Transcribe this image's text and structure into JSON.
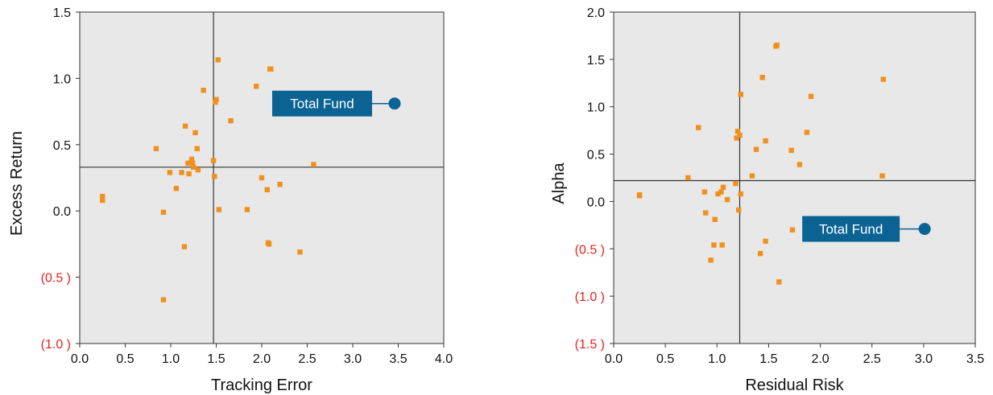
{
  "chart_data": [
    {
      "type": "scatter",
      "xlabel": "Tracking Error",
      "ylabel": "Excess Return",
      "xlim": [
        0,
        4
      ],
      "ylim": [
        -1,
        1.5
      ],
      "x_ticks": [
        0,
        0.5,
        1,
        1.5,
        2,
        2.5,
        3,
        3.5,
        4
      ],
      "x_tick_labels": [
        "0.0",
        "0.5",
        "1.0",
        "1.5",
        "2.0",
        "2.5",
        "3.0",
        "3.5",
        "4.0"
      ],
      "y_ticks": [
        1.5,
        1,
        0.5,
        0,
        -0.5,
        -1
      ],
      "y_tick_labels": [
        "1.5",
        "1.0",
        "0.5",
        "0.0",
        "(0.5 )",
        "(1.0 )"
      ],
      "crosshair": {
        "x": 1.47,
        "y": 0.33
      },
      "grid": false,
      "series": [
        {
          "color": "#f0901e",
          "marker": "square",
          "x": [
            0.25,
            0.25,
            0.84,
            0.92,
            0.92,
            0.99,
            1.06,
            1.12,
            1.15,
            1.16,
            1.19,
            1.2,
            1.23,
            1.24,
            1.25,
            1.27,
            1.29,
            1.3,
            1.36,
            1.47,
            1.48,
            1.49,
            1.5,
            1.52,
            1.53,
            1.66,
            1.84,
            1.94,
            2.0,
            2.06,
            2.07,
            2.08,
            2.09,
            2.1,
            2.2,
            2.42,
            2.57
          ],
          "y": [
            0.08,
            0.11,
            0.47,
            -0.01,
            -0.67,
            0.29,
            0.17,
            0.29,
            -0.27,
            0.64,
            0.36,
            0.28,
            0.39,
            0.36,
            0.33,
            0.59,
            0.47,
            0.31,
            0.91,
            0.38,
            0.26,
            0.82,
            0.84,
            1.14,
            0.01,
            0.68,
            0.01,
            0.94,
            0.25,
            0.16,
            -0.24,
            -0.25,
            1.07,
            1.07,
            0.2,
            -0.31,
            0.35
          ]
        },
        {
          "name": "Total Fund",
          "color": "#0b6394",
          "marker": "circle",
          "x": [
            3.46
          ],
          "y": [
            0.81
          ]
        }
      ],
      "annotations": [
        {
          "text": "Total Fund",
          "target": "Total Fund"
        }
      ]
    },
    {
      "type": "scatter",
      "xlabel": "Residual Risk",
      "ylabel": "Alpha",
      "xlim": [
        0,
        3.5
      ],
      "ylim": [
        -1.5,
        2
      ],
      "x_ticks": [
        0,
        0.5,
        1,
        1.5,
        2,
        2.5,
        3,
        3.5
      ],
      "x_tick_labels": [
        "0.0",
        "0.5",
        "1.0",
        "1.5",
        "2.0",
        "2.5",
        "3.0",
        "3.5"
      ],
      "y_ticks": [
        2,
        1.5,
        1,
        0.5,
        0,
        -0.5,
        -1,
        -1.5
      ],
      "y_tick_labels": [
        "2.0",
        "1.5",
        "1.0",
        "0.5",
        "0.0",
        "(0.5 )",
        "(1.0 )",
        "(1.5 )"
      ],
      "crosshair": {
        "x": 1.22,
        "y": 0.22
      },
      "grid": false,
      "series": [
        {
          "color": "#f0901e",
          "marker": "square",
          "x": [
            0.25,
            0.25,
            0.72,
            0.82,
            0.88,
            0.89,
            0.94,
            0.97,
            0.98,
            1.01,
            1.04,
            1.05,
            1.06,
            1.1,
            1.18,
            1.19,
            1.2,
            1.21,
            1.22,
            1.23,
            1.23,
            1.34,
            1.38,
            1.42,
            1.44,
            1.47,
            1.47,
            1.57,
            1.58,
            1.6,
            1.72,
            1.73,
            1.8,
            1.87,
            1.91,
            2.6,
            2.61
          ],
          "y": [
            0.06,
            0.07,
            0.25,
            0.78,
            0.1,
            -0.12,
            -0.62,
            -0.46,
            -0.19,
            0.08,
            0.1,
            -0.46,
            0.15,
            0.02,
            0.19,
            0.67,
            0.74,
            -0.09,
            0.7,
            1.13,
            0.08,
            0.27,
            0.55,
            -0.55,
            1.31,
            0.64,
            -0.42,
            1.64,
            1.65,
            -0.85,
            0.54,
            -0.3,
            0.39,
            0.73,
            1.11,
            0.27,
            1.29
          ]
        },
        {
          "name": "Total Fund",
          "color": "#0b6394",
          "marker": "circle",
          "x": [
            3.01
          ],
          "y": [
            -0.29
          ]
        }
      ],
      "annotations": [
        {
          "text": "Total Fund",
          "target": "Total Fund"
        }
      ]
    }
  ],
  "style": {
    "plot_background": "#e8e8e8",
    "axis_color": "#333333",
    "negative_tick_color": "#e8211d",
    "tick_color": "#111111",
    "callout_background": "#0b6394",
    "callout_text_color": "#ffffff"
  }
}
